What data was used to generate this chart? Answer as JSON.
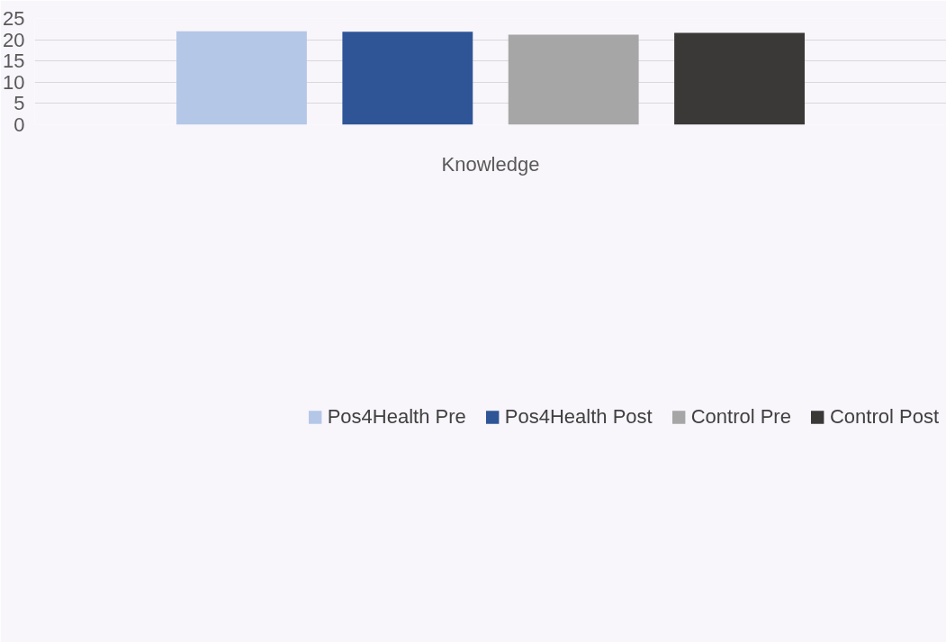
{
  "chart_data": {
    "type": "bar",
    "categories": [
      "Knowledge"
    ],
    "series": [
      {
        "name": "Pos4Health Pre",
        "color": "#b4c7e7",
        "values": [
          22.0
        ]
      },
      {
        "name": "Pos4Health Post",
        "color": "#2f5597",
        "values": [
          21.9
        ]
      },
      {
        "name": "Control Pre",
        "color": "#a6a6a6",
        "values": [
          21.2
        ]
      },
      {
        "name": "Control Post",
        "color": "#3b3838",
        "values": [
          21.6
        ]
      }
    ],
    "ylim": [
      0,
      25
    ],
    "yticks": [
      0,
      5,
      10,
      15,
      20,
      25
    ],
    "grid": "y",
    "legend": "bottom"
  }
}
